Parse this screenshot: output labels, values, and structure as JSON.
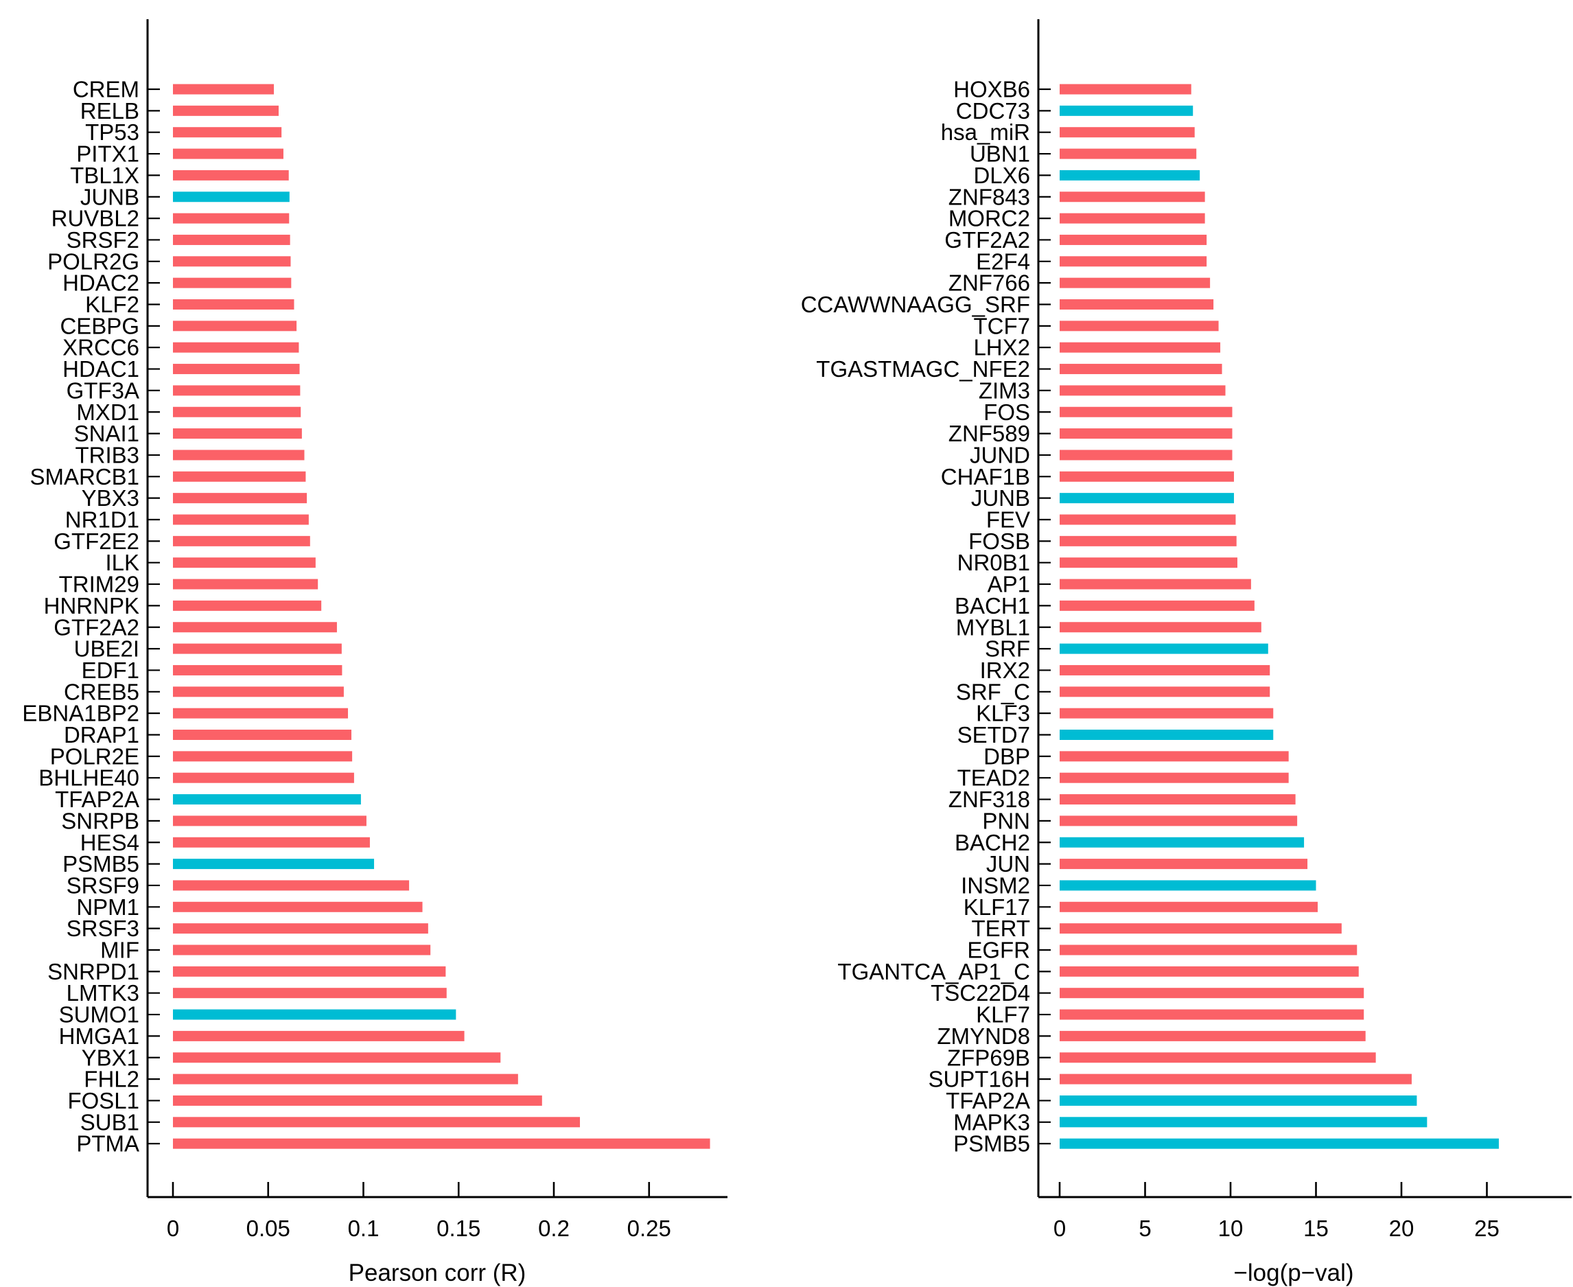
{
  "figure": {
    "background": "#ffffff",
    "bar_color_default": "#FB6167",
    "bar_color_highlight": "#00BCD4",
    "axis_color": "#000000"
  },
  "chart_data": [
    {
      "type": "bar",
      "orientation": "horizontal",
      "xlabel": "Pearson corr (R)",
      "x_ticks": [
        0,
        0.05,
        0.1,
        0.15,
        0.2,
        0.25
      ],
      "x_tick_labels": [
        "0",
        "0.05",
        "0.1",
        "0.15",
        "0.2",
        "0.25"
      ],
      "xlim": [
        0,
        0.291
      ],
      "grid": false,
      "legend": null,
      "highlight_color_meaning": "highlighted series (cyan)",
      "rows": [
        {
          "label": "CREM",
          "value": 0.053,
          "highlight": false
        },
        {
          "label": "RELB",
          "value": 0.0555,
          "highlight": false
        },
        {
          "label": "TP53",
          "value": 0.057,
          "highlight": false
        },
        {
          "label": "PITX1",
          "value": 0.058,
          "highlight": false
        },
        {
          "label": "TBL1X",
          "value": 0.0608,
          "highlight": false
        },
        {
          "label": "JUNB",
          "value": 0.0612,
          "highlight": true
        },
        {
          "label": "RUVBL2",
          "value": 0.061,
          "highlight": false
        },
        {
          "label": "SRSF2",
          "value": 0.0615,
          "highlight": false
        },
        {
          "label": "POLR2G",
          "value": 0.0618,
          "highlight": false
        },
        {
          "label": "HDAC2",
          "value": 0.0621,
          "highlight": false
        },
        {
          "label": "KLF2",
          "value": 0.0636,
          "highlight": false
        },
        {
          "label": "CEBPG",
          "value": 0.0649,
          "highlight": false
        },
        {
          "label": "XRCC6",
          "value": 0.0661,
          "highlight": false
        },
        {
          "label": "HDAC1",
          "value": 0.0665,
          "highlight": false
        },
        {
          "label": "GTF3A",
          "value": 0.0668,
          "highlight": false
        },
        {
          "label": "MXD1",
          "value": 0.0671,
          "highlight": false
        },
        {
          "label": "SNAI1",
          "value": 0.0677,
          "highlight": false
        },
        {
          "label": "TRIB3",
          "value": 0.069,
          "highlight": false
        },
        {
          "label": "SMARCB1",
          "value": 0.0697,
          "highlight": false
        },
        {
          "label": "YBX3",
          "value": 0.0703,
          "highlight": false
        },
        {
          "label": "NR1D1",
          "value": 0.0713,
          "highlight": false
        },
        {
          "label": "GTF2E2",
          "value": 0.072,
          "highlight": false
        },
        {
          "label": "ILK",
          "value": 0.0749,
          "highlight": false
        },
        {
          "label": "TRIM29",
          "value": 0.0761,
          "highlight": false
        },
        {
          "label": "HNRNPK",
          "value": 0.0779,
          "highlight": false
        },
        {
          "label": "GTF2A2",
          "value": 0.0861,
          "highlight": false
        },
        {
          "label": "UBE2I",
          "value": 0.0886,
          "highlight": false
        },
        {
          "label": "EDF1",
          "value": 0.0888,
          "highlight": false
        },
        {
          "label": "CREB5",
          "value": 0.0897,
          "highlight": false
        },
        {
          "label": "EBNA1BP2",
          "value": 0.0919,
          "highlight": false
        },
        {
          "label": "DRAP1",
          "value": 0.0937,
          "highlight": false
        },
        {
          "label": "POLR2E",
          "value": 0.0941,
          "highlight": false
        },
        {
          "label": "BHLHE40",
          "value": 0.0951,
          "highlight": false
        },
        {
          "label": "TFAP2A",
          "value": 0.0987,
          "highlight": true
        },
        {
          "label": "SNRPB",
          "value": 0.1016,
          "highlight": false
        },
        {
          "label": "HES4",
          "value": 0.1034,
          "highlight": false
        },
        {
          "label": "PSMB5",
          "value": 0.1056,
          "highlight": true
        },
        {
          "label": "SRSF9",
          "value": 0.124,
          "highlight": false
        },
        {
          "label": "NPM1",
          "value": 0.131,
          "highlight": false
        },
        {
          "label": "SRSF3",
          "value": 0.134,
          "highlight": false
        },
        {
          "label": "MIF",
          "value": 0.1352,
          "highlight": false
        },
        {
          "label": "SNRPD1",
          "value": 0.1432,
          "highlight": false
        },
        {
          "label": "LMTK3",
          "value": 0.1437,
          "highlight": false
        },
        {
          "label": "SUMO1",
          "value": 0.1486,
          "highlight": true
        },
        {
          "label": "HMGA1",
          "value": 0.153,
          "highlight": false
        },
        {
          "label": "YBX1",
          "value": 0.172,
          "highlight": false
        },
        {
          "label": "FHL2",
          "value": 0.1812,
          "highlight": false
        },
        {
          "label": "FOSL1",
          "value": 0.1938,
          "highlight": false
        },
        {
          "label": "SUB1",
          "value": 0.2137,
          "highlight": false
        },
        {
          "label": "PTMA",
          "value": 0.282,
          "highlight": false
        }
      ]
    },
    {
      "type": "bar",
      "orientation": "horizontal",
      "xlabel": "−log(p−val)",
      "x_ticks": [
        0,
        5,
        10,
        15,
        20,
        25
      ],
      "x_tick_labels": [
        "0",
        "5",
        "10",
        "15",
        "20",
        "25"
      ],
      "xlim": [
        0,
        30
      ],
      "grid": false,
      "legend": null,
      "highlight_color_meaning": "highlighted series (cyan)",
      "rows": [
        {
          "label": "HOXB6",
          "value": 7.7,
          "highlight": false
        },
        {
          "label": "CDC73",
          "value": 7.8,
          "highlight": true
        },
        {
          "label": "hsa_miR",
          "value": 7.9,
          "highlight": false
        },
        {
          "label": "UBN1",
          "value": 8.0,
          "highlight": false
        },
        {
          "label": "DLX6",
          "value": 8.2,
          "highlight": true
        },
        {
          "label": "ZNF843",
          "value": 8.5,
          "highlight": false
        },
        {
          "label": "MORC2",
          "value": 8.5,
          "highlight": false
        },
        {
          "label": "GTF2A2",
          "value": 8.6,
          "highlight": false
        },
        {
          "label": "E2F4",
          "value": 8.6,
          "highlight": false
        },
        {
          "label": "ZNF766",
          "value": 8.8,
          "highlight": false
        },
        {
          "label": "CCAWWNAAGG_SRF",
          "value": 9.0,
          "highlight": false
        },
        {
          "label": "TCF7",
          "value": 9.3,
          "highlight": false
        },
        {
          "label": "LHX2",
          "value": 9.4,
          "highlight": false
        },
        {
          "label": "TGASTMAGC_NFE2",
          "value": 9.5,
          "highlight": false
        },
        {
          "label": "ZIM3",
          "value": 9.7,
          "highlight": false
        },
        {
          "label": "FOS",
          "value": 10.1,
          "highlight": false
        },
        {
          "label": "ZNF589",
          "value": 10.1,
          "highlight": false
        },
        {
          "label": "JUND",
          "value": 10.1,
          "highlight": false
        },
        {
          "label": "CHAF1B",
          "value": 10.2,
          "highlight": false
        },
        {
          "label": "JUNB",
          "value": 10.2,
          "highlight": true
        },
        {
          "label": "FEV",
          "value": 10.3,
          "highlight": false
        },
        {
          "label": "FOSB",
          "value": 10.35,
          "highlight": false
        },
        {
          "label": "NR0B1",
          "value": 10.4,
          "highlight": false
        },
        {
          "label": "AP1",
          "value": 11.2,
          "highlight": false
        },
        {
          "label": "BACH1",
          "value": 11.4,
          "highlight": false
        },
        {
          "label": "MYBL1",
          "value": 11.8,
          "highlight": false
        },
        {
          "label": "SRF",
          "value": 12.2,
          "highlight": true
        },
        {
          "label": "IRX2",
          "value": 12.3,
          "highlight": false
        },
        {
          "label": "SRF_C",
          "value": 12.3,
          "highlight": false
        },
        {
          "label": "KLF3",
          "value": 12.5,
          "highlight": false
        },
        {
          "label": "SETD7",
          "value": 12.5,
          "highlight": true
        },
        {
          "label": "DBP",
          "value": 13.4,
          "highlight": false
        },
        {
          "label": "TEAD2",
          "value": 13.4,
          "highlight": false
        },
        {
          "label": "ZNF318",
          "value": 13.8,
          "highlight": false
        },
        {
          "label": "PNN",
          "value": 13.9,
          "highlight": false
        },
        {
          "label": "BACH2",
          "value": 14.3,
          "highlight": true
        },
        {
          "label": "JUN",
          "value": 14.5,
          "highlight": false
        },
        {
          "label": "INSM2",
          "value": 15.0,
          "highlight": true
        },
        {
          "label": "KLF17",
          "value": 15.1,
          "highlight": false
        },
        {
          "label": "TERT",
          "value": 16.5,
          "highlight": false
        },
        {
          "label": "EGFR",
          "value": 17.4,
          "highlight": false
        },
        {
          "label": "TGANTCA_AP1_C",
          "value": 17.5,
          "highlight": false
        },
        {
          "label": "TSC22D4",
          "value": 17.8,
          "highlight": false
        },
        {
          "label": "KLF7",
          "value": 17.8,
          "highlight": false
        },
        {
          "label": "ZMYND8",
          "value": 17.9,
          "highlight": false
        },
        {
          "label": "ZFP69B",
          "value": 18.5,
          "highlight": false
        },
        {
          "label": "SUPT16H",
          "value": 20.6,
          "highlight": false
        },
        {
          "label": "TFAP2A",
          "value": 20.9,
          "highlight": true
        },
        {
          "label": "MAPK3",
          "value": 21.5,
          "highlight": true
        },
        {
          "label": "PSMB5",
          "value": 25.7,
          "highlight": true
        }
      ]
    }
  ]
}
